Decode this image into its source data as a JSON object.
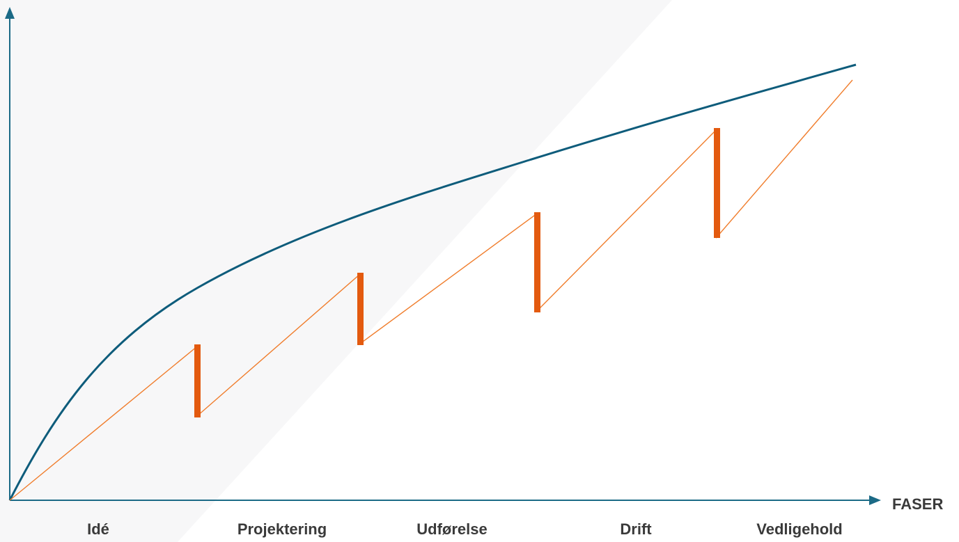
{
  "x_axis_label": "FASER",
  "phases": [
    "Idé",
    "Projektering",
    "Udførelse",
    "Drift",
    "Vedligehold"
  ],
  "colors": {
    "background_shade": "#f7f7f8",
    "axis": "#1b6a86",
    "upper_curve": "#0e5c7b",
    "sawtooth_line": "#f07d2c",
    "drop_bars": "#e35a0f",
    "label_text": "#3a3a3a"
  }
}
